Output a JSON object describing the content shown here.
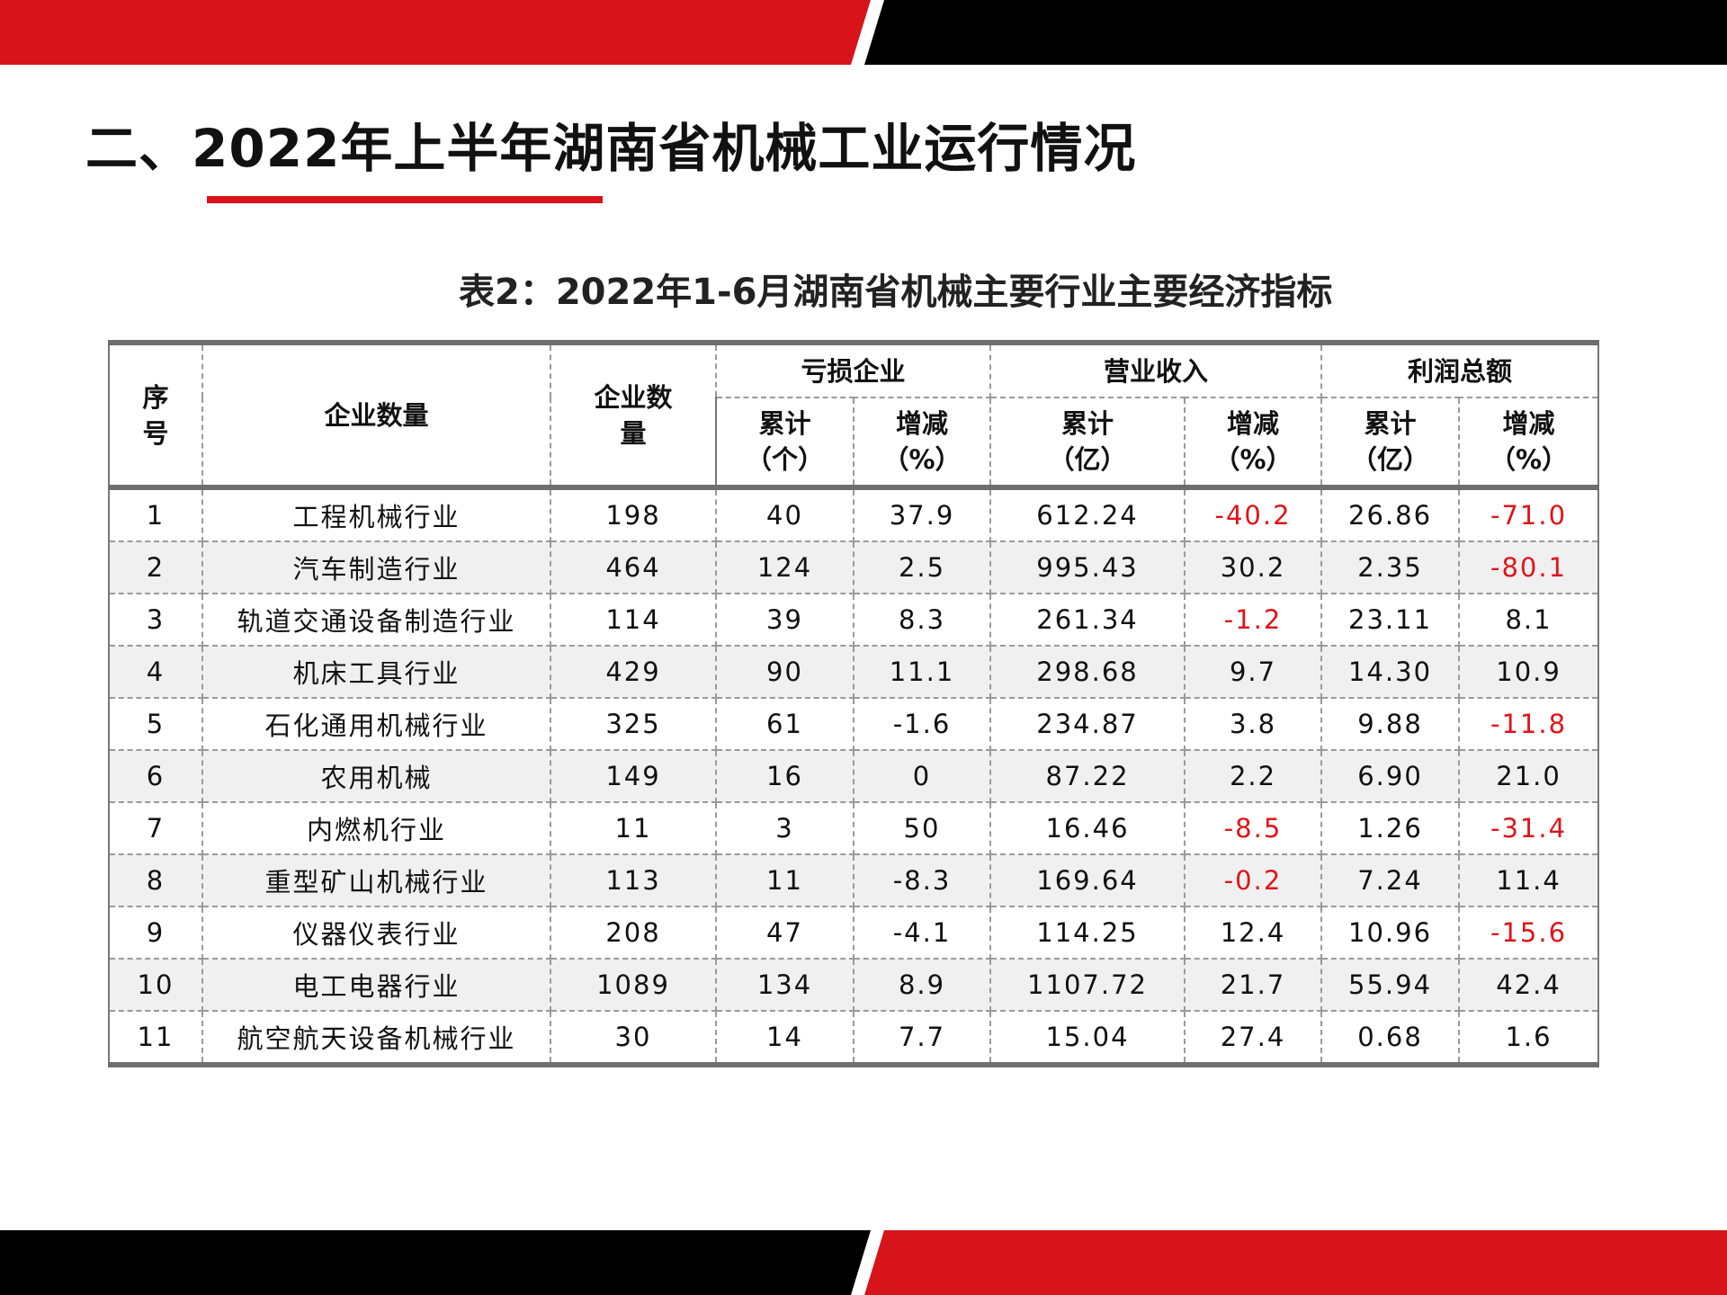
{
  "colors": {
    "accent_red": "#d7141a",
    "band_black": "#000000",
    "negative": "#e0141b"
  },
  "slide": {
    "title": "二、2022年上半年湖南省机械工业运行情况",
    "table_caption": "表2：2022年1-6月湖南省机械主要行业主要经济指标"
  },
  "table": {
    "headers": {
      "seq_line1": "序",
      "seq_line2": "号",
      "industry": "企业数量",
      "count_line1": "企业数",
      "count_line2": "量",
      "loss_group": "亏损企业",
      "revenue_group": "营业收入",
      "profit_group": "利润总额",
      "loss_total_line1": "累计",
      "loss_total_line2": "（个）",
      "loss_change_line1": "增减",
      "loss_change_line2": "（%）",
      "rev_total_line1": "累计",
      "rev_total_line2": "（亿）",
      "rev_change_line1": "增减",
      "rev_change_line2": "（%）",
      "profit_total_line1": "累计",
      "profit_total_line2": "（亿）",
      "profit_change_line1": "增减",
      "profit_change_line2": "（%）"
    },
    "rows": [
      {
        "seq": "1",
        "industry": "工程机械行业",
        "count": "198",
        "loss_total": "40",
        "loss_change": "37.9",
        "rev_total": "612.24",
        "rev_change": "-40.2",
        "profit_total": "26.86",
        "profit_change": "-71.0"
      },
      {
        "seq": "2",
        "industry": "汽车制造行业",
        "count": "464",
        "loss_total": "124",
        "loss_change": "2.5",
        "rev_total": "995.43",
        "rev_change": "30.2",
        "profit_total": "2.35",
        "profit_change": "-80.1"
      },
      {
        "seq": "3",
        "industry": "轨道交通设备制造行业",
        "count": "114",
        "loss_total": "39",
        "loss_change": "8.3",
        "rev_total": "261.34",
        "rev_change": "-1.2",
        "profit_total": "23.11",
        "profit_change": "8.1"
      },
      {
        "seq": "4",
        "industry": "机床工具行业",
        "count": "429",
        "loss_total": "90",
        "loss_change": "11.1",
        "rev_total": "298.68",
        "rev_change": "9.7",
        "profit_total": "14.30",
        "profit_change": "10.9"
      },
      {
        "seq": "5",
        "industry": "石化通用机械行业",
        "count": "325",
        "loss_total": "61",
        "loss_change": "-1.6",
        "rev_total": "234.87",
        "rev_change": "3.8",
        "profit_total": "9.88",
        "profit_change": "-11.8"
      },
      {
        "seq": "6",
        "industry": "农用机械",
        "count": "149",
        "loss_total": "16",
        "loss_change": "0",
        "rev_total": "87.22",
        "rev_change": "2.2",
        "profit_total": "6.90",
        "profit_change": "21.0"
      },
      {
        "seq": "7",
        "industry": "内燃机行业",
        "count": "11",
        "loss_total": "3",
        "loss_change": "50",
        "rev_total": "16.46",
        "rev_change": "-8.5",
        "profit_total": "1.26",
        "profit_change": "-31.4"
      },
      {
        "seq": "8",
        "industry": "重型矿山机械行业",
        "count": "113",
        "loss_total": "11",
        "loss_change": "-8.3",
        "rev_total": "169.64",
        "rev_change": "-0.2",
        "profit_total": "7.24",
        "profit_change": "11.4"
      },
      {
        "seq": "9",
        "industry": "仪器仪表行业",
        "count": "208",
        "loss_total": "47",
        "loss_change": "-4.1",
        "rev_total": "114.25",
        "rev_change": "12.4",
        "profit_total": "10.96",
        "profit_change": "-15.6"
      },
      {
        "seq": "10",
        "industry": "电工电器行业",
        "count": "1089",
        "loss_total": "134",
        "loss_change": "8.9",
        "rev_total": "1107.72",
        "rev_change": "21.7",
        "profit_total": "55.94",
        "profit_change": "42.4"
      },
      {
        "seq": "11",
        "industry": "航空航天设备机械行业",
        "count": "30",
        "loss_total": "14",
        "loss_change": "7.7",
        "rev_total": "15.04",
        "rev_change": "27.4",
        "profit_total": "0.68",
        "profit_change": "1.6"
      }
    ]
  }
}
